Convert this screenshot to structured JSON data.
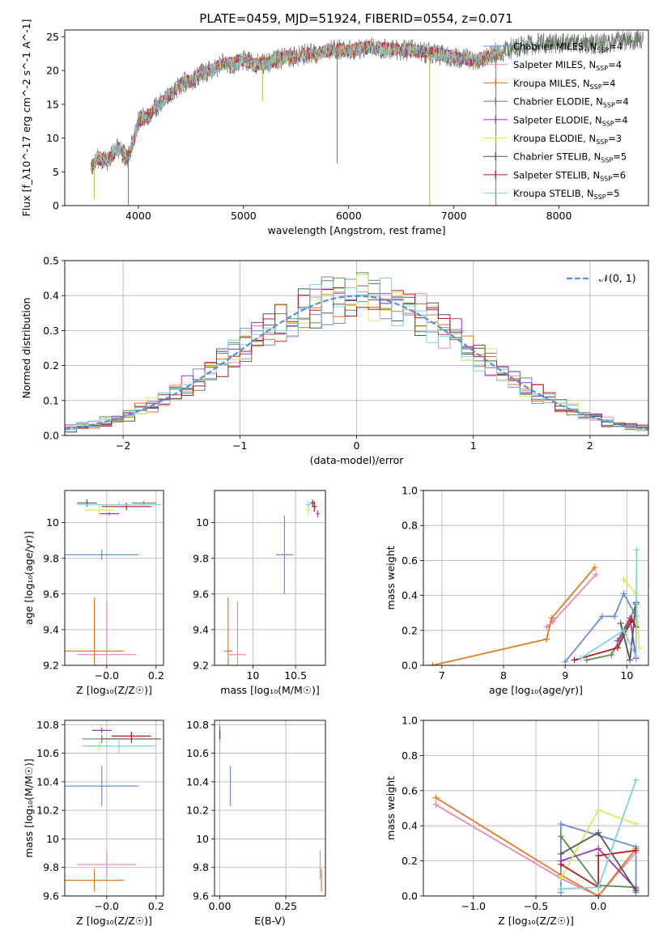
{
  "figure": {
    "title": "PLATE=0459, MJD=51924, FIBERID=0554, z=0.071"
  },
  "models": [
    {
      "name": "Chabrier MILES",
      "nssp": "4",
      "color": "#6b8fd9"
    },
    {
      "name": "Salpeter MILES",
      "nssp": "4",
      "color": "#e887b8"
    },
    {
      "name": "Kroupa MILES",
      "nssp": "4",
      "color": "#e07b23"
    },
    {
      "name": "Chabrier ELODIE",
      "nssp": "4",
      "color": "#5e8a58"
    },
    {
      "name": "Salpeter ELODIE",
      "nssp": "4",
      "color": "#9b3eb5"
    },
    {
      "name": "Kroupa ELODIE",
      "nssp": "3",
      "color": "#d4ee5e"
    },
    {
      "name": "Chabrier STELIB",
      "nssp": "5",
      "color": "#555555"
    },
    {
      "name": "Salpeter STELIB",
      "nssp": "6",
      "color": "#b81a1a"
    },
    {
      "name": "Kroupa STELIB",
      "nssp": "5",
      "color": "#7dd3e0"
    }
  ],
  "chart_data": [
    {
      "id": "spectrum",
      "type": "line",
      "xlabel": "wavelength [Angstrom, rest frame]",
      "ylabel": "Flux [f_λ10^-17 erg cm^-2 s^-1 A^-1]",
      "xlim": [
        3300,
        8850
      ],
      "ylim": [
        0,
        26
      ],
      "xticks": [
        4000,
        5000,
        6000,
        7000,
        8000
      ],
      "yticks": [
        0,
        5,
        10,
        15,
        20,
        25
      ],
      "legend": "right",
      "envelope": {
        "x": [
          3550,
          3600,
          3700,
          3800,
          3900,
          4000,
          4100,
          4200,
          4300,
          4400,
          4500,
          4600,
          4700,
          4800,
          4900,
          5000,
          5100,
          5200,
          5300,
          5400,
          5500,
          5600,
          5700,
          5800,
          5900,
          6000,
          6200,
          6400,
          6600,
          6800,
          7000,
          7200,
          7400,
          7600,
          7800,
          8000,
          8200,
          8400,
          8600,
          8800
        ],
        "y": [
          5.5,
          7.0,
          6.5,
          8.5,
          7.0,
          12.5,
          13.5,
          15.0,
          16.5,
          18.0,
          18.5,
          19.5,
          20.0,
          21.0,
          21.0,
          21.5,
          21.0,
          21.0,
          21.5,
          22.0,
          22.0,
          22.5,
          22.5,
          23.0,
          23.0,
          23.0,
          23.5,
          23.0,
          23.0,
          22.5,
          22.0,
          21.5,
          22.5,
          23.5,
          24.0,
          24.0,
          24.0,
          24.0,
          24.5,
          24.5
        ]
      },
      "absorption_lines": [
        {
          "x": 3580,
          "y": 1.0
        },
        {
          "x": 3905,
          "y": 0.0
        },
        {
          "x": 5180,
          "y": 15.5
        },
        {
          "x": 5890,
          "y": 6.2
        },
        {
          "x": 6770,
          "y": 0.0
        },
        {
          "x": 7400,
          "y": 0.0
        }
      ]
    },
    {
      "id": "residuals",
      "type": "histogram",
      "xlabel": "(data-model)/error",
      "ylabel": "Normed distribution",
      "xlim": [
        -2.5,
        2.5
      ],
      "ylim": [
        0,
        0.5
      ],
      "xticks": [
        -2,
        -1,
        0,
        1,
        2
      ],
      "yticks": [
        0.0,
        0.1,
        0.2,
        0.3,
        0.4,
        0.5
      ],
      "bin_width": 0.1,
      "reference": {
        "name": "𝒩(0, 1)",
        "mean": 0,
        "sigma": 1,
        "color": "#5b8fd6"
      }
    },
    {
      "id": "age-vs-z",
      "type": "errorbar",
      "xlabel": "Z [log₁₀(Z/Z☉)]",
      "ylabel": "age  [log₁₀(age/yr)]",
      "xlim": [
        -0.17,
        0.23
      ],
      "ylim": [
        9.2,
        10.18
      ],
      "xticks": [
        -0.0,
        0.2
      ],
      "xticklabels": [
        "−0.0",
        "0.2"
      ],
      "yticks": [
        9.2,
        9.4,
        9.6,
        9.8,
        10.0
      ],
      "points": [
        {
          "model": 0,
          "x": -0.02,
          "y": 9.82,
          "xerr": 0.15,
          "yerr": 0.03
        },
        {
          "model": 1,
          "x": 0.0,
          "y": 9.26,
          "xerr": 0.12,
          "yerr": 0.3
        },
        {
          "model": 2,
          "x": -0.05,
          "y": 9.28,
          "xerr": 0.12,
          "yerr": 0.3
        },
        {
          "model": 3,
          "x": 0.15,
          "y": 10.11,
          "xerr": 0.05,
          "yerr": 0.01
        },
        {
          "model": 4,
          "x": 0.01,
          "y": 10.05,
          "xerr": 0.04,
          "yerr": 0.01
        },
        {
          "model": 5,
          "x": -0.03,
          "y": 10.07,
          "xerr": 0.06,
          "yerr": 0.03
        },
        {
          "model": 6,
          "x": -0.08,
          "y": 10.11,
          "xerr": 0.04,
          "yerr": 0.02
        },
        {
          "model": 7,
          "x": 0.08,
          "y": 10.09,
          "xerr": 0.1,
          "yerr": 0.02
        },
        {
          "model": 8,
          "x": 0.05,
          "y": 10.1,
          "xerr": 0.17,
          "yerr": 0.02
        }
      ]
    },
    {
      "id": "age-vs-mass",
      "type": "errorbar",
      "xlabel": "mass [log₁₀(M/M☉)]",
      "ylabel": "",
      "xlim": [
        9.55,
        10.85
      ],
      "ylim": [
        9.2,
        10.18
      ],
      "xticks": [
        10.0,
        10.5
      ],
      "yticks": [
        9.2,
        9.4,
        9.6,
        9.8,
        10.0
      ],
      "points": [
        {
          "model": 0,
          "x": 10.37,
          "y": 9.82,
          "xerr": 0.1,
          "yerr": 0.22
        },
        {
          "model": 1,
          "x": 9.82,
          "y": 9.26,
          "xerr": 0.1,
          "yerr": 0.3
        },
        {
          "model": 2,
          "x": 9.71,
          "y": 9.28,
          "xerr": 0.05,
          "yerr": 0.3
        },
        {
          "model": 3,
          "x": 10.7,
          "y": 10.11,
          "xerr": 0.03,
          "yerr": 0.01
        },
        {
          "model": 4,
          "x": 10.76,
          "y": 10.05,
          "xerr": 0.02,
          "yerr": 0.02
        },
        {
          "model": 5,
          "x": 10.65,
          "y": 10.07,
          "xerr": 0.03,
          "yerr": 0.03
        },
        {
          "model": 6,
          "x": 10.7,
          "y": 10.11,
          "xerr": 0.02,
          "yerr": 0.02
        },
        {
          "model": 7,
          "x": 10.72,
          "y": 10.09,
          "xerr": 0.03,
          "yerr": 0.03
        },
        {
          "model": 8,
          "x": 10.65,
          "y": 10.1,
          "xerr": 0.03,
          "yerr": 0.02
        }
      ]
    },
    {
      "id": "weight-vs-age",
      "type": "line",
      "xlabel": "age  [log₁₀(age/yr)]",
      "ylabel": "mass weight",
      "xlim": [
        6.7,
        10.35
      ],
      "ylim": [
        0,
        1
      ],
      "xticks": [
        7,
        8,
        9,
        10
      ],
      "yticks": [
        0.0,
        0.2,
        0.4,
        0.6,
        0.8,
        1.0
      ],
      "series": [
        {
          "model": 0,
          "x": [
            9.0,
            9.6,
            9.8,
            9.95,
            10.15
          ],
          "y": [
            0.02,
            0.28,
            0.28,
            0.41,
            0.28
          ]
        },
        {
          "model": 1,
          "x": [
            8.7,
            8.8,
            9.5
          ],
          "y": [
            0.22,
            0.25,
            0.52
          ]
        },
        {
          "model": 2,
          "x": [
            6.85,
            8.7,
            8.78,
            9.48
          ],
          "y": [
            0.0,
            0.15,
            0.27,
            0.56
          ]
        },
        {
          "model": 3,
          "x": [
            9.35,
            9.75,
            10.0,
            10.15
          ],
          "y": [
            0.03,
            0.06,
            0.22,
            0.35
          ]
        },
        {
          "model": 4,
          "x": [
            9.85,
            10.05,
            10.15
          ],
          "y": [
            0.14,
            0.27,
            0.04
          ]
        },
        {
          "model": 5,
          "x": [
            9.95,
            10.15,
            10.2
          ],
          "y": [
            0.49,
            0.41,
            0.1
          ]
        },
        {
          "model": 6,
          "x": [
            9.9,
            10.05,
            10.15
          ],
          "y": [
            0.24,
            0.03,
            0.36
          ]
        },
        {
          "model": 7,
          "x": [
            9.15,
            9.85,
            10.08,
            10.15
          ],
          "y": [
            0.03,
            0.1,
            0.26,
            0.22
          ]
        },
        {
          "model": 8,
          "x": [
            9.25,
            9.95,
            10.15,
            10.16
          ],
          "y": [
            0.04,
            0.2,
            0.05,
            0.66
          ]
        }
      ]
    },
    {
      "id": "mass-vs-z",
      "type": "errorbar",
      "xlabel": "Z [log₁₀(Z/Z☉)]",
      "ylabel": "mass [log₁₀(M/M☉)]",
      "xlim": [
        -0.17,
        0.23
      ],
      "ylim": [
        9.6,
        10.83
      ],
      "xticks": [
        -0.0,
        0.2
      ],
      "xticklabels": [
        "−0.0",
        "0.2"
      ],
      "yticks": [
        9.6,
        9.8,
        10.0,
        10.2,
        10.4,
        10.6,
        10.8
      ],
      "points": [
        {
          "model": 0,
          "x": -0.02,
          "y": 10.37,
          "xerr": 0.15,
          "yerr": 0.14
        },
        {
          "model": 1,
          "x": 0.0,
          "y": 9.82,
          "xerr": 0.12,
          "yerr": 0.1
        },
        {
          "model": 2,
          "x": -0.05,
          "y": 9.71,
          "xerr": 0.12,
          "yerr": 0.08
        },
        {
          "model": 3,
          "x": -0.02,
          "y": 10.7,
          "xerr": 0.08,
          "yerr": 0.03
        },
        {
          "model": 4,
          "x": -0.02,
          "y": 10.76,
          "xerr": 0.04,
          "yerr": 0.02
        },
        {
          "model": 5,
          "x": -0.03,
          "y": 10.65,
          "xerr": 0.05,
          "yerr": 0.03
        },
        {
          "model": 6,
          "x": 0.1,
          "y": 10.7,
          "xerr": 0.12,
          "yerr": 0.03
        },
        {
          "model": 7,
          "x": 0.1,
          "y": 10.72,
          "xerr": 0.08,
          "yerr": 0.03
        },
        {
          "model": 8,
          "x": 0.05,
          "y": 10.65,
          "xerr": 0.15,
          "yerr": 0.05
        }
      ]
    },
    {
      "id": "mass-vs-ebv",
      "type": "errorbar",
      "xlabel": "E(B-V)",
      "ylabel": "",
      "xlim": [
        -0.02,
        0.4
      ],
      "ylim": [
        9.6,
        10.83
      ],
      "xticks": [
        0.0,
        0.25
      ],
      "xticklabels": [
        "0.00",
        "0.25"
      ],
      "yticks": [
        9.6,
        9.8,
        10.0,
        10.2,
        10.4,
        10.6,
        10.8
      ],
      "points": [
        {
          "model": 0,
          "x": 0.04,
          "y": 10.37,
          "xerr": 0,
          "yerr": 0.14
        },
        {
          "model": 1,
          "x": 0.38,
          "y": 9.82,
          "xerr": 0,
          "yerr": 0.1
        },
        {
          "model": 2,
          "x": 0.385,
          "y": 9.71,
          "xerr": 0,
          "yerr": 0.08
        },
        {
          "model": 3,
          "x": 0.0,
          "y": 10.7,
          "xerr": 0,
          "yerr": 0.03
        },
        {
          "model": 4,
          "x": 0.0,
          "y": 10.76,
          "xerr": 0,
          "yerr": 0.03
        },
        {
          "model": 5,
          "x": 0.0,
          "y": 10.65,
          "xerr": 0,
          "yerr": 0.03
        },
        {
          "model": 6,
          "x": 0.0,
          "y": 10.7,
          "xerr": 0,
          "yerr": 0.03
        },
        {
          "model": 7,
          "x": 0.0,
          "y": 10.72,
          "xerr": 0,
          "yerr": 0.04
        },
        {
          "model": 8,
          "x": 0.0,
          "y": 10.65,
          "xerr": 0,
          "yerr": 0.05
        }
      ]
    },
    {
      "id": "weight-vs-z",
      "type": "line",
      "xlabel": "Z [log₁₀(Z/Z☉)]",
      "ylabel": "mass weight",
      "xlim": [
        -1.4,
        0.4
      ],
      "ylim": [
        0,
        1
      ],
      "xticks": [
        -1.0,
        -0.5,
        0.0
      ],
      "xticklabels": [
        "−1.0",
        "−0.5",
        "0.0"
      ],
      "yticks": [
        0.0,
        0.2,
        0.4,
        0.6,
        0.8,
        1.0
      ],
      "series": [
        {
          "model": 0,
          "x": [
            -0.3,
            -0.3,
            0.3,
            0.3
          ],
          "y": [
            0.02,
            0.41,
            0.28,
            0.02
          ]
        },
        {
          "model": 1,
          "x": [
            -1.3,
            -0.3,
            0.0,
            0.3
          ],
          "y": [
            0.52,
            0.1,
            0.0,
            0.25
          ]
        },
        {
          "model": 2,
          "x": [
            -1.3,
            -0.3,
            0.0,
            0.3
          ],
          "y": [
            0.56,
            0.12,
            0.0,
            0.27
          ]
        },
        {
          "model": 3,
          "x": [
            -0.3,
            0.0,
            0.3
          ],
          "y": [
            0.34,
            0.06,
            0.05
          ]
        },
        {
          "model": 4,
          "x": [
            -0.3,
            0.0,
            0.3
          ],
          "y": [
            0.2,
            0.27,
            0.04
          ]
        },
        {
          "model": 5,
          "x": [
            -0.3,
            0.0,
            0.3
          ],
          "y": [
            0.1,
            0.49,
            0.41
          ]
        },
        {
          "model": 6,
          "x": [
            -0.3,
            0.0,
            0.3
          ],
          "y": [
            0.24,
            0.36,
            0.03
          ]
        },
        {
          "model": 7,
          "x": [
            -0.3,
            0.0,
            0.0,
            0.3
          ],
          "y": [
            0.18,
            0.05,
            0.23,
            0.26
          ]
        },
        {
          "model": 8,
          "x": [
            -0.3,
            0.0,
            0.3
          ],
          "y": [
            0.04,
            0.05,
            0.66
          ]
        }
      ]
    }
  ]
}
